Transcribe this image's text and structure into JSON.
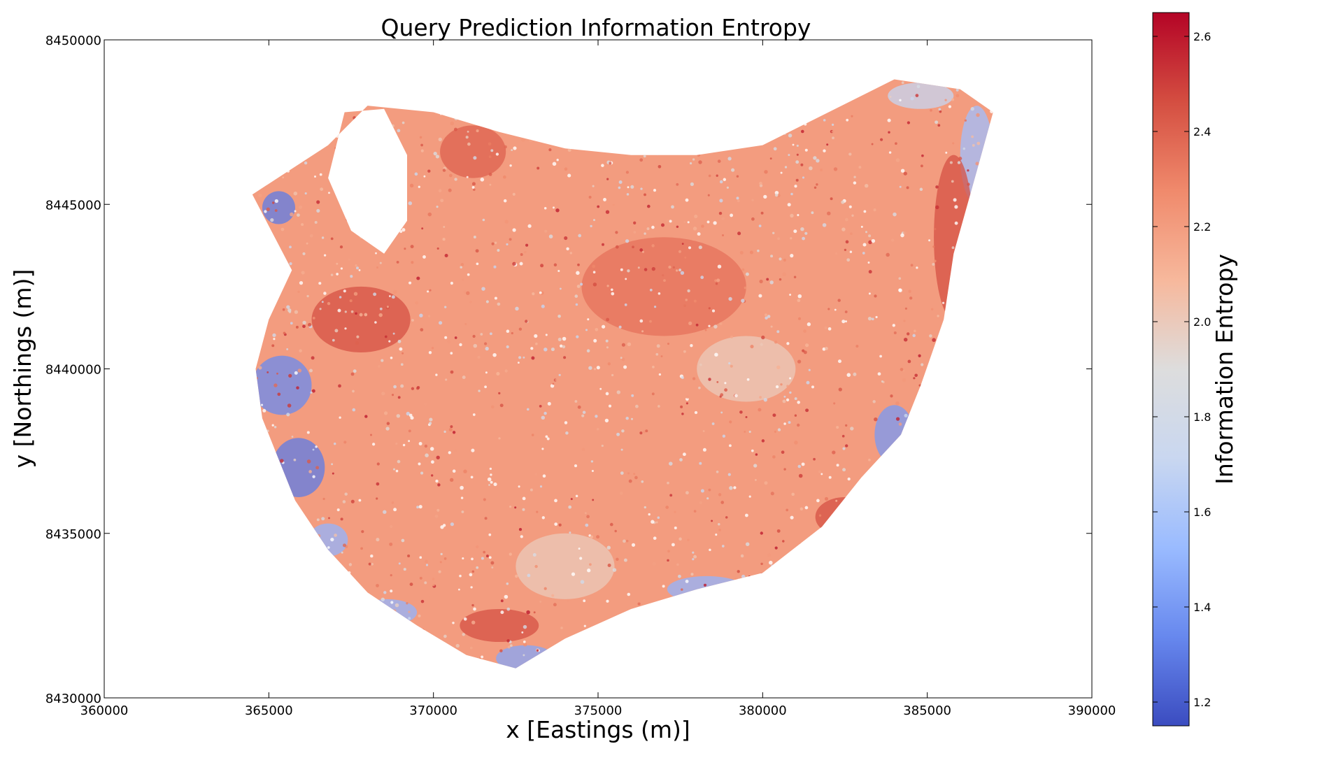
{
  "chart_data": {
    "type": "scatter",
    "title": "Query Prediction Information Entropy",
    "xlabel": "x [Eastings (m)]",
    "ylabel": "y [Northings (m)]",
    "xlim": [
      360000,
      390000
    ],
    "ylim": [
      8430000,
      8450000
    ],
    "xticks": [
      360000,
      365000,
      370000,
      375000,
      380000,
      385000,
      390000
    ],
    "yticks": [
      8430000,
      8435000,
      8440000,
      8445000,
      8450000
    ],
    "grid": false,
    "colorbar": {
      "label": "Information Entropy",
      "range": [
        1.15,
        2.65
      ],
      "ticks": [
        1.2,
        1.4,
        1.6,
        1.8,
        2.0,
        2.2,
        2.4,
        2.6
      ],
      "colormap": [
        "#3b4cc0",
        "#6788ee",
        "#9abbff",
        "#c9d7f0",
        "#dddddd",
        "#f7b89c",
        "#f08a6c",
        "#d44e41",
        "#b40426"
      ]
    },
    "region_outline": [
      [
        364500,
        8445300
      ],
      [
        366800,
        8446800
      ],
      [
        368000,
        8448000
      ],
      [
        370000,
        8447800
      ],
      [
        372000,
        8447200
      ],
      [
        374000,
        8446700
      ],
      [
        376000,
        8446500
      ],
      [
        378000,
        8446500
      ],
      [
        380000,
        8446800
      ],
      [
        382000,
        8447800
      ],
      [
        384000,
        8448800
      ],
      [
        386000,
        8448500
      ],
      [
        387000,
        8447800
      ],
      [
        386500,
        8446000
      ],
      [
        385800,
        8443500
      ],
      [
        385500,
        8441500
      ],
      [
        384800,
        8439500
      ],
      [
        384200,
        8438000
      ],
      [
        383000,
        8436700
      ],
      [
        381800,
        8435200
      ],
      [
        380000,
        8433800
      ],
      [
        378000,
        8433300
      ],
      [
        376000,
        8432700
      ],
      [
        374000,
        8431800
      ],
      [
        372500,
        8430900
      ],
      [
        371000,
        8431300
      ],
      [
        369500,
        8432200
      ],
      [
        368000,
        8433200
      ],
      [
        366800,
        8434500
      ],
      [
        365800,
        8436000
      ],
      [
        364800,
        8438500
      ],
      [
        364600,
        8440000
      ],
      [
        365000,
        8441500
      ],
      [
        365700,
        8443000
      ],
      [
        364500,
        8445300
      ]
    ],
    "blank_area_outline": [
      [
        367300,
        8447800
      ],
      [
        368500,
        8447900
      ],
      [
        369200,
        8446500
      ],
      [
        369200,
        8444500
      ],
      [
        368500,
        8443500
      ],
      [
        367500,
        8444200
      ],
      [
        366800,
        8445800
      ]
    ],
    "zones": [
      {
        "x": 365300,
        "y": 8444900,
        "rx": 500,
        "ry": 500,
        "value": 1.3
      },
      {
        "x": 365400,
        "y": 8439500,
        "rx": 900,
        "ry": 900,
        "value": 1.35
      },
      {
        "x": 365900,
        "y": 8437000,
        "rx": 800,
        "ry": 900,
        "value": 1.3
      },
      {
        "x": 366800,
        "y": 8434800,
        "rx": 600,
        "ry": 500,
        "value": 1.5
      },
      {
        "x": 368600,
        "y": 8432600,
        "rx": 900,
        "ry": 400,
        "value": 1.5
      },
      {
        "x": 372800,
        "y": 8431200,
        "rx": 900,
        "ry": 400,
        "value": 1.45
      },
      {
        "x": 378300,
        "y": 8433300,
        "rx": 1200,
        "ry": 400,
        "value": 1.5
      },
      {
        "x": 384000,
        "y": 8438000,
        "rx": 600,
        "ry": 900,
        "value": 1.4
      },
      {
        "x": 386500,
        "y": 8446500,
        "rx": 500,
        "ry": 1500,
        "value": 1.55
      },
      {
        "x": 384800,
        "y": 8448300,
        "rx": 1000,
        "ry": 400,
        "value": 1.7
      },
      {
        "x": 367800,
        "y": 8441500,
        "rx": 1500,
        "ry": 1000,
        "value": 2.45
      },
      {
        "x": 371200,
        "y": 8446600,
        "rx": 1000,
        "ry": 800,
        "value": 2.4
      },
      {
        "x": 385800,
        "y": 8444000,
        "rx": 600,
        "ry": 2500,
        "value": 2.45
      },
      {
        "x": 377000,
        "y": 8442500,
        "rx": 2500,
        "ry": 1500,
        "value": 2.35
      },
      {
        "x": 379500,
        "y": 8440000,
        "rx": 1500,
        "ry": 1000,
        "value": 2.0
      },
      {
        "x": 372000,
        "y": 8432200,
        "rx": 1200,
        "ry": 500,
        "value": 2.45
      },
      {
        "x": 382500,
        "y": 8435500,
        "rx": 900,
        "ry": 600,
        "value": 2.45
      },
      {
        "x": 374000,
        "y": 8434000,
        "rx": 1500,
        "ry": 1000,
        "value": 2.0
      }
    ]
  }
}
